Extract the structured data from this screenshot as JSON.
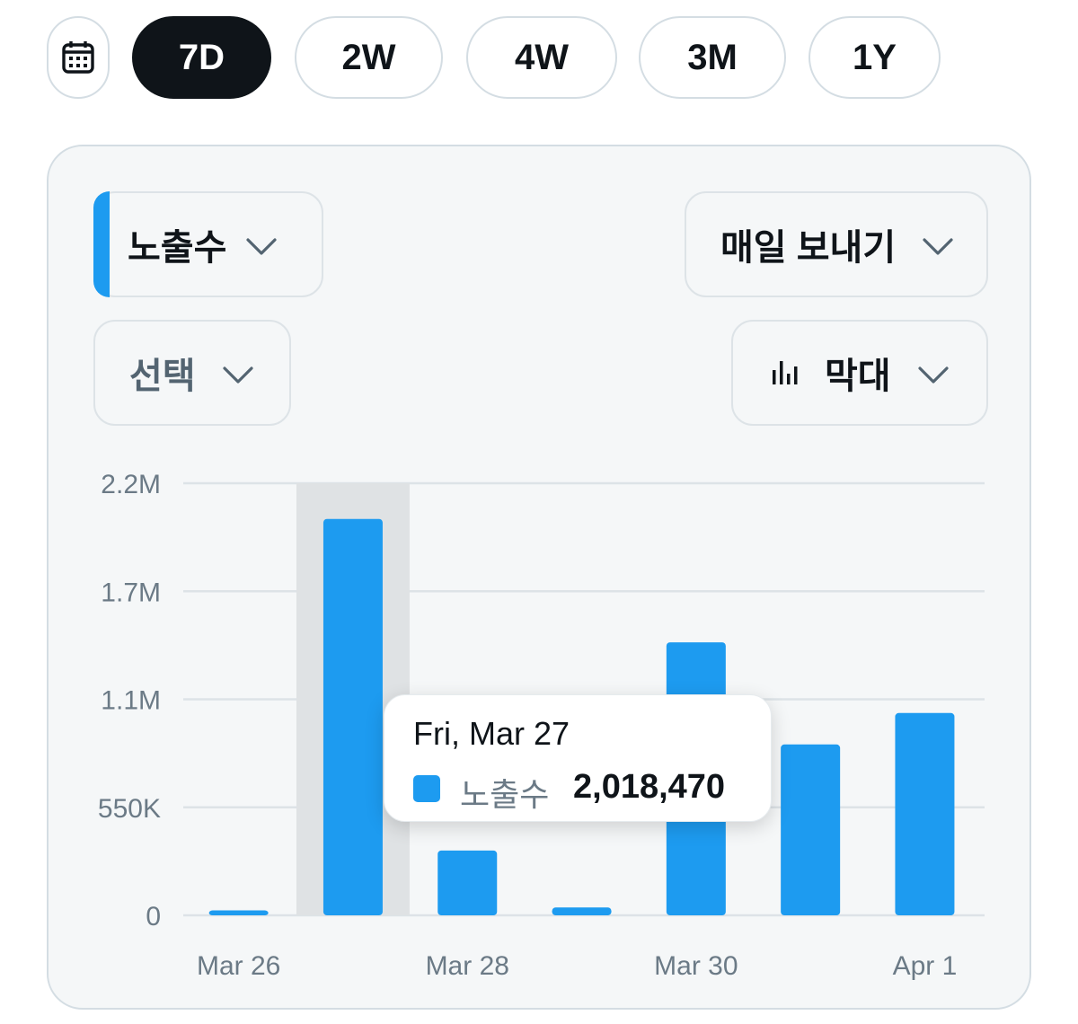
{
  "range_selector": {
    "calendar_icon": "calendar-icon",
    "options": [
      {
        "label": "7D",
        "active": true
      },
      {
        "label": "2W",
        "active": false
      },
      {
        "label": "4W",
        "active": false
      },
      {
        "label": "3M",
        "active": false
      },
      {
        "label": "1Y",
        "active": false
      }
    ]
  },
  "controls": {
    "metric_label": "노출수",
    "export_label": "매일 보내기",
    "compare_label": "선택",
    "chart_type_label": "막대",
    "chart_type_icon": "bar-chart-icon",
    "chevron_icon": "chevron-down-icon"
  },
  "colors": {
    "accent": "#1d9bf0",
    "highlight": "#dfe2e4",
    "grid": "#dde3e7"
  },
  "chart_data": {
    "type": "bar",
    "categories": [
      "Mar 26",
      "Mar 27",
      "Mar 28",
      "Mar 29",
      "Mar 30",
      "Mar 31",
      "Apr 1"
    ],
    "x_tick_labels": [
      "Mar 26",
      "Mar 28",
      "Mar 30",
      "Apr 1"
    ],
    "series": [
      {
        "name": "노출수",
        "values": [
          25000,
          2018470,
          330000,
          40000,
          1390000,
          870000,
          1030000
        ]
      }
    ],
    "y_ticks": [
      0,
      550000,
      1100000,
      1650000,
      2200000
    ],
    "y_tick_labels": [
      "0",
      "550K",
      "1.1M",
      "1.7M",
      "2.2M"
    ],
    "ylim": [
      0,
      2200000
    ],
    "grid": true,
    "highlighted_category": "Mar 27"
  },
  "tooltip": {
    "date": "Fri, Mar 27",
    "series": "노출수",
    "value": "2,018,470"
  }
}
